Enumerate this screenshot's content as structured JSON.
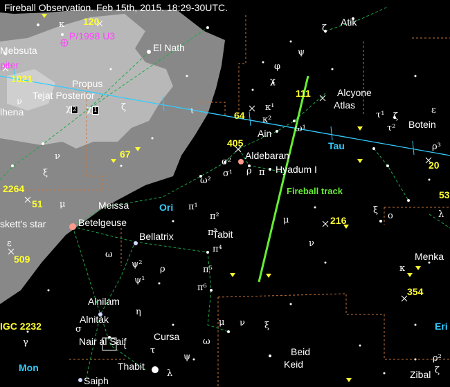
{
  "title": "Fireball Observation. Feb 15th, 2015. 18:29-30UTC.",
  "colors": {
    "background": "#000000",
    "milky_way": "#8c8c8c",
    "milky_way_light": "#b4b4b4",
    "fireball": "#66ee33",
    "ecliptic": "#33ccff",
    "constellation_lines": "#1fa84a",
    "boundaries": "#c8763a",
    "object_labels": "#ffff33",
    "constellation_names": "#33ccff",
    "comet": "#ff44ff"
  },
  "star_names": {
    "atik": "Atik",
    "mebsuta": "Mebsuta",
    "el_nath": "El Nath",
    "propus": "Propus",
    "tejat": "Tejat Posterior",
    "alhena": "lhena",
    "alcyone": "Alcyone",
    "atlas": "Atlas",
    "ain": "Ain",
    "aldebaran": "Aldebaran",
    "hyadum": "Hyadum I",
    "botein": "Botein",
    "meissa": "Meissa",
    "betelgeuse": "Betelgeuse",
    "kapteyn": "skett's star",
    "bellatrix": "Bellatrix",
    "tabit": "Tabit",
    "menkar": "Menka",
    "alnilam": "Alnilam",
    "alnitak": "Alnitak",
    "nair": "Nair al Saif",
    "cursa": "Cursa",
    "beid": "Beid",
    "keid": "Keid",
    "thabit": "Thabit",
    "saiph": "Saiph",
    "zibal": "Zibal",
    "jupiter": "piter"
  },
  "objects": {
    "ngc120": "120",
    "ngc1021": "1021",
    "ngc111": "111",
    "ngc64": "64",
    "ngc405": "405",
    "ngc67": "67",
    "ngc20": "20",
    "ngc2264": "2264",
    "ngc51": "51",
    "ngc216": "216",
    "ngc53": "53",
    "ngc509": "509",
    "ngc354": "354",
    "ngc2232": "IGC 2232"
  },
  "comet": "P/1998 U3",
  "constellations": {
    "tau": "Tau",
    "ori": "Ori",
    "mon": "Mon",
    "eri": "Eri"
  },
  "track_label": "Fireball track",
  "greek": {
    "kappa_top": "κ",
    "zeta_atik": "ζ",
    "psi": "ψ",
    "phi": "φ",
    "chi": "χ",
    "nu_gem": "ν",
    "chi2": "χ",
    "chi1": "χ",
    "zeta_gem": "ζ",
    "iota": "ι",
    "kappa1": "κ¹",
    "kappa2": "κ²",
    "omega1": "ω¹",
    "tau1": "τ¹",
    "tau2": "τ²",
    "zeta_tau": "ζ",
    "epsilon_r": "ε",
    "rho3": "ρ³",
    "sigma2": "σ²",
    "sigma1": "σ¹",
    "rho_tau": "ρ",
    "pi_tau": "π",
    "omega2": "ω²",
    "nu_ori": "ν",
    "xi_ori": "ξ",
    "mu_ori": "μ",
    "pi1": "π¹",
    "pi2": "π²",
    "pi3": "π³",
    "pi4": "π⁴",
    "pi5": "π⁵",
    "pi6": "π⁶",
    "mu_tau": "μ",
    "nu_tau": "ν",
    "xi_tau": "ξ",
    "omicron": "ο",
    "lambda_r": "λ",
    "kappa_cet": "κ",
    "epsilon_l": "ε",
    "omega": "ω",
    "psi2": "ψ²",
    "psi1": "ψ¹",
    "rho_ori": "ρ",
    "eta": "η",
    "sigma": "σ",
    "iota_ori": "ι",
    "mu_eri": "μ",
    "nu_eri": "ν",
    "xi_eri": "ξ",
    "omega_eri": "ω",
    "psi_eri": "ψ",
    "tau_ori": "τ",
    "lambda_eri": "λ",
    "gamma": "γ",
    "rho2": "ρ²",
    "zeta_r": "ζ",
    "epsilon_tau": "ε"
  }
}
